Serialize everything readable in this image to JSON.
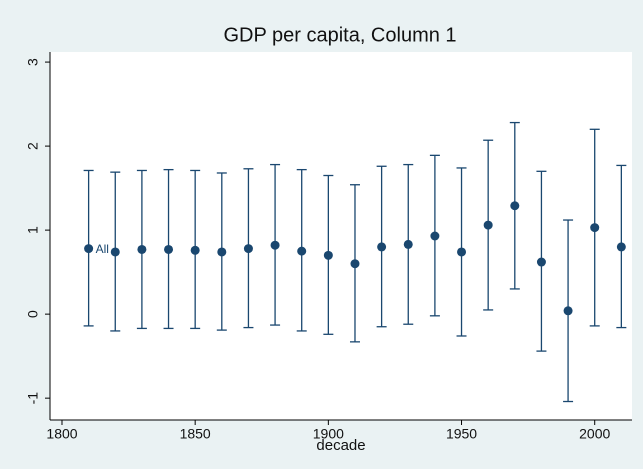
{
  "chart_data": {
    "type": "errorbar",
    "title": "GDP per capita, Column 1",
    "x_label": "decade",
    "annotation": "All",
    "x": [
      1810,
      1820,
      1830,
      1840,
      1850,
      1860,
      1870,
      1880,
      1890,
      1900,
      1910,
      1920,
      1930,
      1940,
      1950,
      1960,
      1970,
      1980,
      1990,
      2000,
      2010
    ],
    "values": [
      0.78,
      0.74,
      0.77,
      0.77,
      0.76,
      0.74,
      0.78,
      0.82,
      0.75,
      0.7,
      0.6,
      0.8,
      0.83,
      0.93,
      0.74,
      1.06,
      1.29,
      0.62,
      0.04,
      1.03,
      0.8
    ],
    "upper": [
      1.71,
      1.69,
      1.71,
      1.72,
      1.71,
      1.68,
      1.73,
      1.78,
      1.72,
      1.65,
      1.54,
      1.76,
      1.78,
      1.89,
      1.74,
      2.07,
      2.28,
      1.7,
      1.12,
      2.2,
      1.77
    ],
    "lower": [
      -0.14,
      -0.2,
      -0.17,
      -0.17,
      -0.17,
      -0.19,
      -0.16,
      -0.13,
      -0.2,
      -0.24,
      -0.33,
      -0.15,
      -0.12,
      -0.02,
      -0.26,
      0.05,
      0.3,
      -0.44,
      -1.04,
      -0.14,
      -0.16
    ],
    "color": "#1a476f",
    "xlim": [
      1795.5,
      2014
    ],
    "xticks": [
      1800,
      1850,
      1900,
      1950,
      2000
    ],
    "ylim": [
      -1.26,
      3.12
    ],
    "yticks": [
      -1,
      0,
      1,
      2,
      3
    ],
    "grid": false
  }
}
